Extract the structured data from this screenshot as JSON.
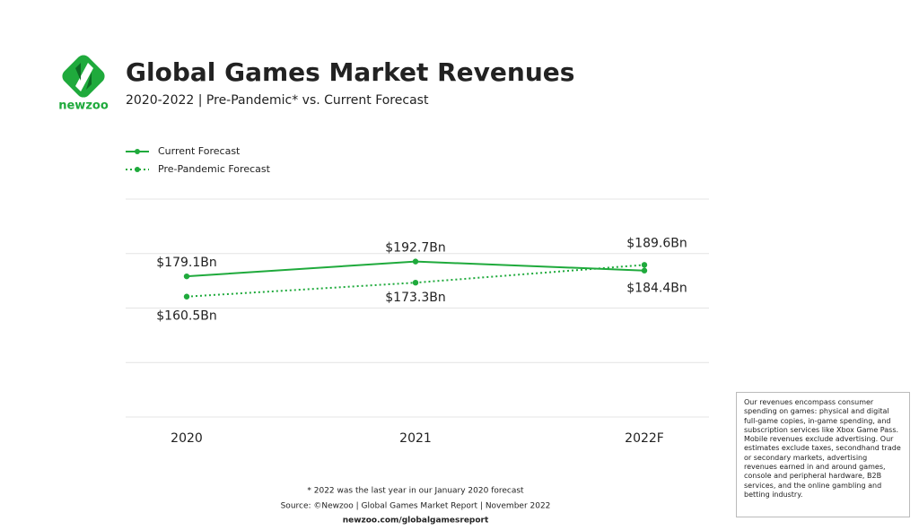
{
  "logo": "newzoo",
  "chart_data": {
    "type": "line",
    "title": "Global Games Market Revenues",
    "subtitle": "2020-2022 | Pre-Pandemic* vs. Current Forecast",
    "categories": [
      "2020",
      "2021",
      "2022F"
    ],
    "series": [
      {
        "name": "Current Forecast",
        "color": "#1faa3c",
        "style": "solid",
        "values": [
          179.1,
          192.7,
          184.4
        ],
        "value_labels": [
          "$179.1Bn",
          "$192.7Bn",
          "$184.4Bn"
        ]
      },
      {
        "name": "Pre-Pandemic Forecast",
        "color": "#1faa3c",
        "style": "dotted",
        "values": [
          160.5,
          173.3,
          189.6
        ],
        "value_labels": [
          "$160.5Bn",
          "$173.3Bn",
          "$189.6Bn"
        ]
      }
    ],
    "ylim": [
      50,
      250
    ],
    "ygrid": [
      50,
      100,
      150,
      200,
      250
    ],
    "legend": "top-left"
  },
  "footnote": "* 2022 was the last year in our January 2020 forecast",
  "source": "Source: ©Newzoo | Global Games Market Report | November 2022",
  "url": "newzoo.com/globalgamesreport",
  "note": "Our revenues encompass consumer spending on games: physical and digital full-game copies, in-game spending, and subscription services like Xbox Game Pass. Mobile revenues exclude advertising. Our estimates exclude taxes, secondhand trade or secondary markets, advertising revenues earned in and around games, console and peripheral hardware, B2B services, and the online gambling and betting industry."
}
